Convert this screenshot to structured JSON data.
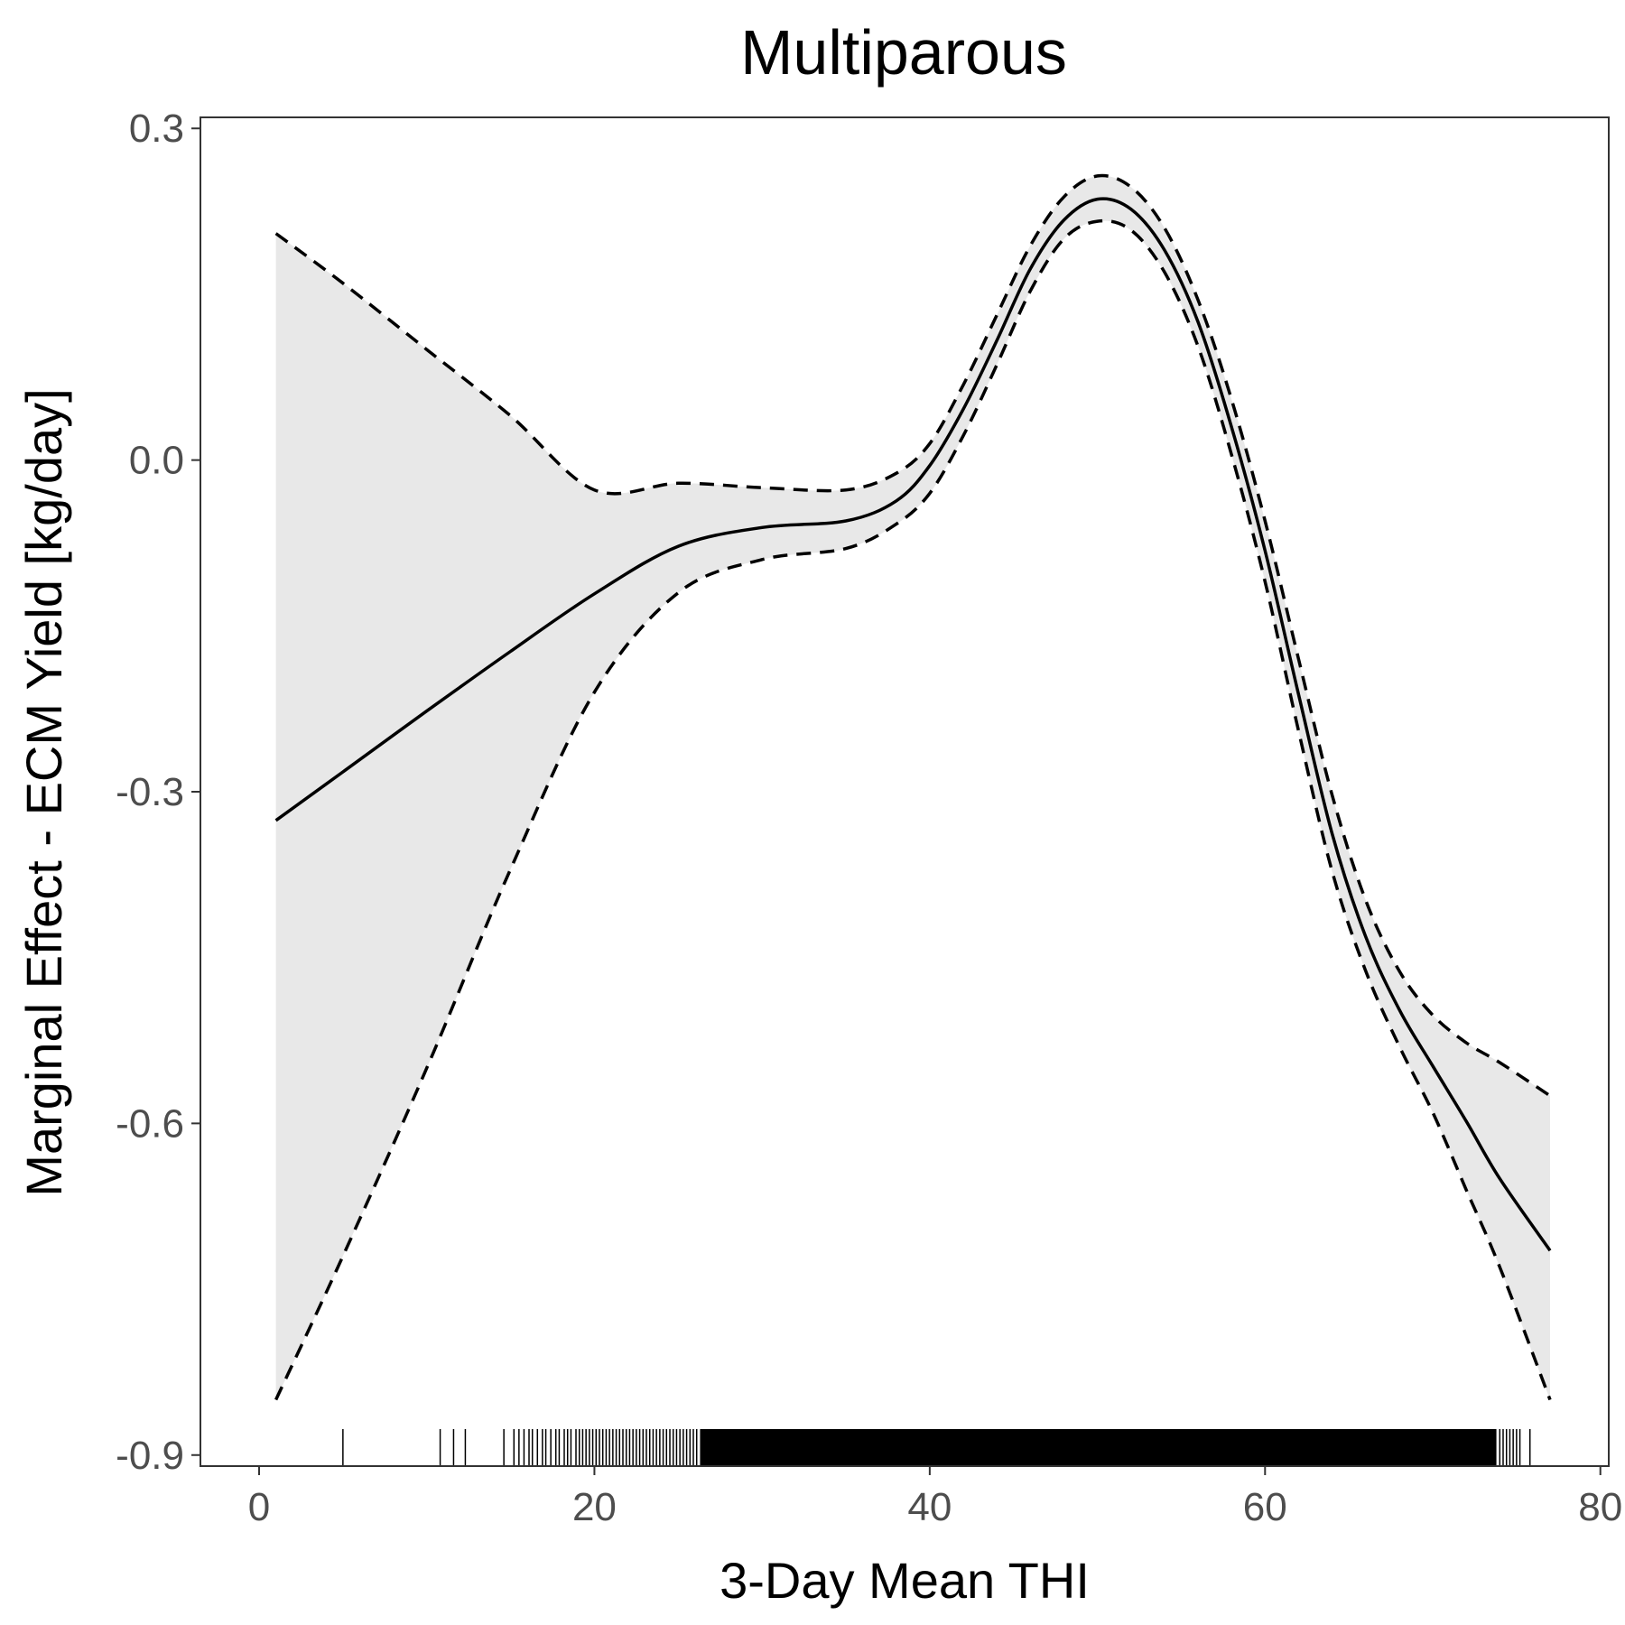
{
  "chart_data": {
    "type": "line",
    "title": "Multiparous",
    "xlabel": "3-Day Mean THI",
    "ylabel": "Marginal Effect - ECM Yield [kg/day]",
    "xlim": [
      -3.5,
      80.5
    ],
    "ylim": [
      -0.91,
      0.31
    ],
    "x_ticks": [
      0,
      20,
      40,
      60,
      80
    ],
    "x_tick_labels": [
      "0",
      "20",
      "40",
      "60",
      "80"
    ],
    "y_ticks": [
      0.3,
      0.0,
      -0.3,
      -0.6,
      -0.9
    ],
    "y_tick_labels": [
      "0.3",
      "0.0",
      "-0.3",
      "-0.6",
      "-0.9"
    ],
    "grid": false,
    "legend": "none",
    "colors": {
      "line": "#000000",
      "ribbon": "#e8e8e8",
      "panel_border": "#333333",
      "tick_text": "#4d4d4d"
    },
    "series": [
      {
        "x": [
          1,
          5,
          10,
          15,
          20,
          25,
          30,
          35,
          38,
          40,
          42,
          44,
          46,
          48,
          50,
          52,
          54,
          56,
          58,
          60,
          62,
          64,
          66,
          68,
          70,
          72,
          74,
          77
        ],
        "values": [
          -0.326,
          -0.282,
          -0.227,
          -0.173,
          -0.121,
          -0.078,
          -0.061,
          -0.055,
          -0.037,
          -0.005,
          0.046,
          0.108,
          0.173,
          0.217,
          0.236,
          0.227,
          0.19,
          0.125,
          0.03,
          -0.082,
          -0.212,
          -0.338,
          -0.431,
          -0.497,
          -0.548,
          -0.598,
          -0.65,
          -0.715
        ],
        "lower": [
          -0.85,
          -0.72,
          -0.55,
          -0.37,
          -0.21,
          -0.12,
          -0.09,
          -0.08,
          -0.058,
          -0.03,
          0.022,
          0.086,
          0.153,
          0.2,
          0.216,
          0.208,
          0.17,
          0.103,
          0.005,
          -0.11,
          -0.245,
          -0.372,
          -0.462,
          -0.53,
          -0.59,
          -0.66,
          -0.73,
          -0.85
        ],
        "upper": [
          0.205,
          0.16,
          0.1,
          0.04,
          -0.027,
          -0.021,
          -0.025,
          -0.027,
          -0.012,
          0.015,
          0.068,
          0.131,
          0.194,
          0.238,
          0.257,
          0.247,
          0.21,
          0.145,
          0.055,
          -0.055,
          -0.18,
          -0.303,
          -0.398,
          -0.462,
          -0.502,
          -0.527,
          -0.545,
          -0.575
        ]
      }
    ],
    "rug_x": [
      5,
      10.8,
      11.6,
      12.3,
      14.6,
      15.2,
      15.5,
      15.8,
      16.1,
      16.3,
      16.6,
      16.9,
      17.1,
      17.4,
      17.7,
      17.9,
      18.2,
      18.4,
      18.6,
      18.9,
      19.1,
      19.3,
      19.5,
      19.7,
      19.9,
      20.1,
      20.3,
      20.5,
      20.7,
      20.9,
      21.1,
      21.3,
      21.5,
      21.7,
      21.9,
      22.1,
      22.3,
      22.5,
      22.7,
      22.9,
      23.1,
      23.3,
      23.5,
      23.7,
      23.9,
      24.1,
      24.3,
      24.5,
      24.7,
      24.9,
      25.1,
      25.3,
      25.5,
      25.7,
      25.9,
      26.1,
      74.0,
      74.2,
      74.4,
      74.6,
      74.8,
      75.0,
      75.2,
      75.8
    ],
    "rug_band": [
      26.3,
      73.8
    ]
  }
}
